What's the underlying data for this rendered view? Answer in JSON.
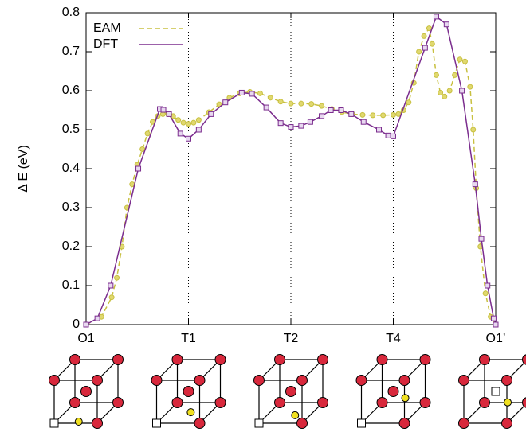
{
  "chart_data": {
    "type": "line",
    "y_label": "Δ E (eV)",
    "xlim": [
      0,
      4
    ],
    "ylim": [
      0,
      0.8
    ],
    "xticks": [
      {
        "value": 0,
        "label": "O1"
      },
      {
        "value": 1,
        "label": "T1"
      },
      {
        "value": 2,
        "label": "T2"
      },
      {
        "value": 3,
        "label": "T4"
      },
      {
        "value": 4,
        "label": "O1’"
      }
    ],
    "yticks": [
      0,
      0.1,
      0.2,
      0.3,
      0.4,
      0.5,
      0.6,
      0.7,
      0.8
    ],
    "vlines": [
      1,
      2,
      3
    ],
    "legend": "top-left",
    "series": [
      {
        "name": "EAM",
        "color": "#c8c040",
        "dashed": true,
        "marker": "circle",
        "x": [
          0,
          0.15,
          0.25,
          0.3,
          0.35,
          0.4,
          0.45,
          0.5,
          0.55,
          0.6,
          0.65,
          0.7,
          0.75,
          0.8,
          0.85,
          0.9,
          0.95,
          1.0,
          1.05,
          1.1,
          1.2,
          1.3,
          1.4,
          1.5,
          1.6,
          1.7,
          1.8,
          1.9,
          2.0,
          2.1,
          2.2,
          2.3,
          2.4,
          2.5,
          2.6,
          2.7,
          2.8,
          2.9,
          3.0,
          3.05,
          3.1,
          3.15,
          3.2,
          3.25,
          3.3,
          3.35,
          3.38,
          3.42,
          3.46,
          3.5,
          3.55,
          3.6,
          3.65,
          3.7,
          3.75,
          3.78,
          3.81,
          3.85,
          3.9,
          3.95,
          4.0
        ],
        "values": [
          0,
          0.02,
          0.07,
          0.12,
          0.2,
          0.3,
          0.36,
          0.41,
          0.45,
          0.49,
          0.52,
          0.535,
          0.54,
          0.54,
          0.535,
          0.525,
          0.518,
          0.515,
          0.518,
          0.525,
          0.545,
          0.565,
          0.582,
          0.593,
          0.597,
          0.593,
          0.582,
          0.572,
          0.567,
          0.567,
          0.566,
          0.561,
          0.553,
          0.545,
          0.54,
          0.538,
          0.537,
          0.537,
          0.538,
          0.54,
          0.55,
          0.57,
          0.62,
          0.7,
          0.74,
          0.76,
          0.72,
          0.64,
          0.595,
          0.585,
          0.6,
          0.64,
          0.68,
          0.675,
          0.61,
          0.5,
          0.35,
          0.2,
          0.08,
          0.02,
          0
        ]
      },
      {
        "name": "DFT",
        "color": "#7b2d8e",
        "dashed": false,
        "marker": "square",
        "x": [
          0,
          0.11,
          0.24,
          0.51,
          0.72,
          0.755,
          0.81,
          0.92,
          1.0,
          1.1,
          1.22,
          1.36,
          1.52,
          1.62,
          1.76,
          1.9,
          2.0,
          2.1,
          2.19,
          2.3,
          2.39,
          2.49,
          2.59,
          2.71,
          2.86,
          2.95,
          3.0,
          3.31,
          3.42,
          3.52,
          3.67,
          3.8,
          3.86,
          3.92,
          3.98,
          4.0
        ],
        "values": [
          0,
          0.016,
          0.1,
          0.4,
          0.553,
          0.551,
          0.54,
          0.49,
          0.477,
          0.5,
          0.54,
          0.57,
          0.595,
          0.592,
          0.557,
          0.517,
          0.507,
          0.51,
          0.52,
          0.535,
          0.55,
          0.55,
          0.54,
          0.52,
          0.5,
          0.485,
          0.483,
          0.71,
          0.79,
          0.77,
          0.6,
          0.36,
          0.22,
          0.1,
          0.016,
          0
        ]
      }
    ]
  }
}
